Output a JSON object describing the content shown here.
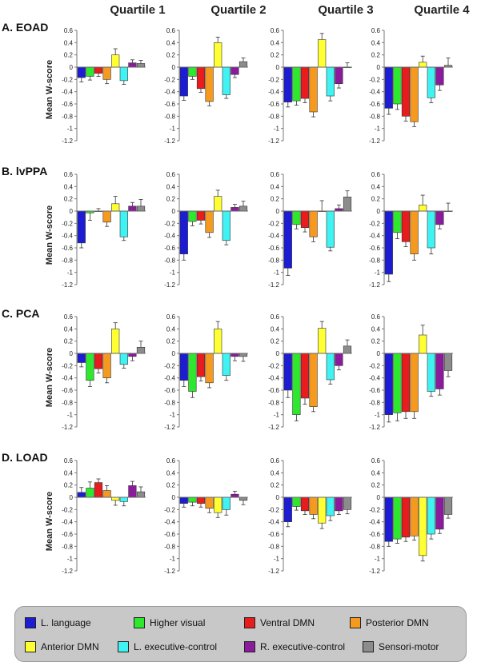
{
  "quartiles": [
    "Quartile 1",
    "Quartile 2",
    "Quartile 3",
    "Quartile 4"
  ],
  "ylabel": "Mean W-score",
  "legend": [
    {
      "label": "L. language",
      "color": "#1c1cd4"
    },
    {
      "label": "Higher visual",
      "color": "#2ee82e"
    },
    {
      "label": "Ventral DMN",
      "color": "#e81c1c"
    },
    {
      "label": "Posterior DMN",
      "color": "#f59a1e"
    },
    {
      "label": "Anterior DMN",
      "color": "#ffff33"
    },
    {
      "label": "L. executive-control",
      "color": "#40f2f2"
    },
    {
      "label": "R. executive-control",
      "color": "#8c1a9c"
    },
    {
      "label": "Sensori-motor",
      "color": "#8c8c8c"
    }
  ],
  "chart_data": {
    "type": "bar",
    "ylim": [
      -1.2,
      0.6
    ],
    "yticks": [
      "0.6",
      "0.4",
      "0.2",
      "0",
      "-0.2",
      "-0.4",
      "-0.6",
      "-0.8",
      "-1",
      "-1.2"
    ],
    "series_names": [
      "L. language",
      "Higher visual",
      "Ventral DMN",
      "Posterior DMN",
      "Anterior DMN",
      "L. executive-control",
      "R. executive-control",
      "Sensori-motor"
    ],
    "rows": [
      {
        "label": "A. EOAD",
        "panels": [
          {
            "quartile": "Quartile 1",
            "values": [
              -0.17,
              -0.15,
              -0.1,
              -0.2,
              0.2,
              -0.22,
              0.07,
              0.06
            ],
            "errors": [
              0.07,
              0.06,
              0.05,
              0.07,
              0.1,
              0.06,
              0.05,
              0.05
            ]
          },
          {
            "quartile": "Quartile 2",
            "values": [
              -0.47,
              -0.15,
              -0.35,
              -0.56,
              0.4,
              -0.45,
              -0.12,
              0.09
            ],
            "errors": [
              0.07,
              0.05,
              0.06,
              0.07,
              0.09,
              0.06,
              0.05,
              0.06
            ]
          },
          {
            "quartile": "Quartile 3",
            "values": [
              -0.57,
              -0.55,
              -0.51,
              -0.73,
              0.45,
              -0.47,
              -0.27,
              0.0
            ],
            "errors": [
              0.08,
              0.07,
              0.07,
              0.08,
              0.1,
              0.08,
              0.07,
              0.07
            ]
          },
          {
            "quartile": "Quartile 4",
            "values": [
              -0.67,
              -0.6,
              -0.8,
              -0.89,
              0.08,
              -0.5,
              -0.29,
              0.03
            ],
            "errors": [
              0.1,
              0.09,
              0.08,
              0.08,
              0.1,
              0.08,
              0.09,
              0.12
            ]
          }
        ]
      },
      {
        "label": "B. lvPPA",
        "panels": [
          {
            "quartile": "Quartile 1",
            "values": [
              -0.52,
              -0.03,
              0.0,
              -0.18,
              0.12,
              -0.42,
              0.08,
              0.08
            ],
            "errors": [
              0.08,
              0.12,
              0.04,
              0.07,
              0.12,
              0.06,
              0.06,
              0.11
            ]
          },
          {
            "quartile": "Quartile 2",
            "values": [
              -0.7,
              -0.17,
              -0.15,
              -0.35,
              0.24,
              -0.48,
              0.06,
              0.08
            ],
            "errors": [
              0.1,
              0.07,
              0.06,
              0.08,
              0.1,
              0.07,
              0.05,
              0.08
            ]
          },
          {
            "quartile": "Quartile 3",
            "values": [
              -0.93,
              -0.22,
              -0.27,
              -0.42,
              0.0,
              -0.59,
              0.04,
              0.23
            ],
            "errors": [
              0.12,
              0.07,
              0.07,
              0.08,
              0.17,
              0.06,
              0.06,
              0.1
            ]
          },
          {
            "quartile": "Quartile 4",
            "values": [
              -1.03,
              -0.35,
              -0.5,
              -0.7,
              0.1,
              -0.6,
              -0.22,
              0.0
            ],
            "errors": [
              0.12,
              0.1,
              0.08,
              0.1,
              0.16,
              0.1,
              0.07,
              0.13
            ]
          }
        ]
      },
      {
        "label": "C. PCA",
        "panels": [
          {
            "quartile": "Quartile 1",
            "values": [
              -0.15,
              -0.44,
              -0.25,
              -0.4,
              0.4,
              -0.18,
              -0.05,
              0.1
            ],
            "errors": [
              0.07,
              0.1,
              0.07,
              0.08,
              0.1,
              0.06,
              0.07,
              0.1
            ]
          },
          {
            "quartile": "Quartile 2",
            "values": [
              -0.44,
              -0.62,
              -0.38,
              -0.48,
              0.4,
              -0.36,
              -0.05,
              -0.05
            ],
            "errors": [
              0.1,
              0.1,
              0.07,
              0.08,
              0.12,
              0.08,
              0.07,
              0.08
            ]
          },
          {
            "quartile": "Quartile 3",
            "values": [
              -0.6,
              -1.0,
              -0.73,
              -0.87,
              0.41,
              -0.43,
              -0.2,
              0.12
            ],
            "errors": [
              0.12,
              0.1,
              0.1,
              0.08,
              0.11,
              0.07,
              0.07,
              0.1
            ]
          },
          {
            "quartile": "Quartile 4",
            "values": [
              -1.0,
              -0.97,
              -0.95,
              -0.95,
              0.3,
              -0.62,
              -0.58,
              -0.28
            ],
            "errors": [
              0.12,
              0.13,
              0.11,
              0.11,
              0.16,
              0.08,
              0.1,
              0.1
            ]
          }
        ]
      },
      {
        "label": "D. LOAD",
        "panels": [
          {
            "quartile": "Quartile 1",
            "values": [
              0.08,
              0.15,
              0.24,
              0.11,
              -0.05,
              -0.07,
              0.19,
              0.09
            ],
            "errors": [
              0.08,
              0.1,
              0.06,
              0.08,
              0.08,
              0.07,
              0.07,
              0.08
            ]
          },
          {
            "quartile": "Quartile 2",
            "values": [
              -0.1,
              -0.08,
              -0.1,
              -0.18,
              -0.25,
              -0.2,
              0.05,
              -0.05
            ],
            "errors": [
              0.06,
              0.06,
              0.06,
              0.07,
              0.08,
              0.09,
              0.05,
              0.07
            ]
          },
          {
            "quartile": "Quartile 3",
            "values": [
              -0.4,
              -0.15,
              -0.22,
              -0.28,
              -0.42,
              -0.3,
              -0.22,
              -0.2
            ],
            "errors": [
              0.08,
              0.06,
              0.06,
              0.07,
              0.09,
              0.08,
              0.06,
              0.07
            ]
          },
          {
            "quartile": "Quartile 4",
            "values": [
              -0.72,
              -0.68,
              -0.65,
              -0.63,
              -0.95,
              -0.6,
              -0.52,
              -0.28
            ],
            "errors": [
              0.08,
              0.07,
              0.07,
              0.07,
              0.09,
              0.08,
              0.07,
              0.06
            ]
          }
        ]
      }
    ]
  }
}
